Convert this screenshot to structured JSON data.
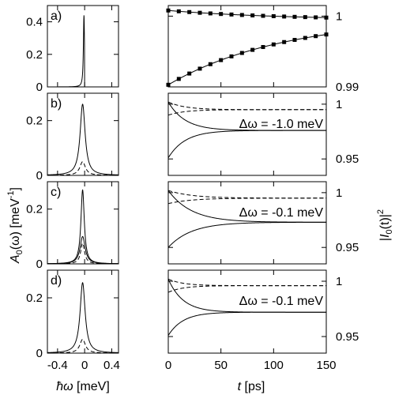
{
  "chart_data": {
    "type": "line",
    "rows": [
      {
        "label": "a)",
        "left": {
          "ylim": [
            0,
            0.5
          ],
          "yticks": [
            {
              "v": 0,
              "t": "0"
            },
            {
              "v": 0.2,
              "t": "0.2"
            },
            {
              "v": 0.4,
              "t": "0.4"
            }
          ],
          "series": [
            {
              "style": "solid",
              "kind": "peak",
              "center": -0.01,
              "peak": 0.44,
              "width": 0.01,
              "cutoff": true
            }
          ]
        },
        "right": {
          "ylim": [
            0.99,
            1.0015
          ],
          "yticks": [
            {
              "v": 0.99,
              "t": "0.99"
            },
            {
              "v": 1.0,
              "t": "1"
            }
          ],
          "annotation": "",
          "series": [
            {
              "style": "solid",
              "markers": true,
              "start": 1.0008,
              "end": 0.99945,
              "tau": 110
            },
            {
              "style": "solid",
              "markers": true,
              "start": 0.9903,
              "end": 0.99985,
              "tau": 110
            }
          ]
        }
      },
      {
        "label": "b)",
        "left": {
          "ylim": [
            0,
            0.3
          ],
          "yticks": [
            {
              "v": 0,
              "t": "0"
            },
            {
              "v": 0.2,
              "t": "0.2"
            }
          ],
          "series": [
            {
              "style": "solid",
              "kind": "peak",
              "center": -0.03,
              "peak": 0.26,
              "width": 0.045
            },
            {
              "style": "dashed",
              "kind": "peak",
              "center": -0.03,
              "peak": 0.05,
              "width": 0.05
            }
          ]
        },
        "right": {
          "ylim": [
            0.935,
            1.01
          ],
          "yticks": [
            {
              "v": 0.95,
              "t": "0.95"
            },
            {
              "v": 1.0,
              "t": "1"
            }
          ],
          "annotation": "Δω = -1.0 meV",
          "series": [
            {
              "style": "solid",
              "start": 1.002,
              "end": 0.976,
              "tau": 16
            },
            {
              "style": "solid",
              "start": 0.951,
              "end": 0.976,
              "tau": 16
            },
            {
              "style": "dashed",
              "start": 1.002,
              "end": 0.995,
              "tau": 16
            },
            {
              "style": "dashed",
              "start": 0.99,
              "end": 0.995,
              "tau": 16
            }
          ]
        }
      },
      {
        "label": "c)",
        "left": {
          "ylim": [
            0,
            0.3
          ],
          "yticks": [
            {
              "v": 0,
              "t": "0"
            },
            {
              "v": 0.2,
              "t": "0.2"
            }
          ],
          "series": [
            {
              "style": "solid",
              "kind": "peak",
              "center": -0.03,
              "peak": 0.27,
              "width": 0.03
            },
            {
              "style": "solid",
              "kind": "peak",
              "center": -0.03,
              "peak": 0.1,
              "width": 0.045
            },
            {
              "style": "dashed",
              "kind": "peak",
              "center": -0.03,
              "peak": 0.075,
              "width": 0.035
            }
          ]
        },
        "right": {
          "ylim": [
            0.935,
            1.01
          ],
          "yticks": [
            {
              "v": 0.95,
              "t": "0.95"
            },
            {
              "v": 1.0,
              "t": "1"
            }
          ],
          "annotation": "Δω = -0.1 meV",
          "series": [
            {
              "style": "solid",
              "start": 1.002,
              "end": 0.973,
              "tau": 22
            },
            {
              "style": "solid",
              "start": 0.95,
              "end": 0.973,
              "tau": 22
            },
            {
              "style": "dashed",
              "start": 1.002,
              "end": 0.995,
              "tau": 22
            },
            {
              "style": "dashed",
              "start": 0.99,
              "end": 0.995,
              "tau": 22
            }
          ]
        }
      },
      {
        "label": "d)",
        "left": {
          "ylim": [
            0,
            0.3
          ],
          "yticks": [
            {
              "v": 0,
              "t": "0"
            },
            {
              "v": 0.2,
              "t": "0.2"
            }
          ],
          "series": [
            {
              "style": "solid",
              "kind": "peak",
              "center": -0.03,
              "peak": 0.255,
              "width": 0.045
            },
            {
              "style": "dashed",
              "kind": "peak",
              "center": -0.03,
              "peak": 0.05,
              "width": 0.05
            }
          ]
        },
        "right": {
          "ylim": [
            0.935,
            1.01
          ],
          "yticks": [
            {
              "v": 0.95,
              "t": "0.95"
            },
            {
              "v": 1.0,
              "t": "1"
            }
          ],
          "annotation": "Δω = -0.1 meV",
          "series": [
            {
              "style": "solid",
              "start": 1.002,
              "end": 0.972,
              "tau": 14
            },
            {
              "style": "solid",
              "start": 0.951,
              "end": 0.972,
              "tau": 14
            },
            {
              "style": "dashed",
              "start": 1.002,
              "end": 0.996,
              "tau": 14
            },
            {
              "style": "dashed",
              "start": 0.99,
              "end": 0.996,
              "tau": 14
            }
          ]
        }
      }
    ],
    "left_x": {
      "xlim": [
        -0.55,
        0.5
      ],
      "xticks": [
        {
          "v": -0.4,
          "t": "-0.4"
        },
        {
          "v": 0,
          "t": "0"
        },
        {
          "v": 0.4,
          "t": "0.4"
        }
      ],
      "xlabel_sym": "ħω",
      "xlabel_unit": " [meV]"
    },
    "right_x": {
      "xlim": [
        0,
        150
      ],
      "xticks": [
        {
          "v": 0,
          "t": "0"
        },
        {
          "v": 50,
          "t": "50"
        },
        {
          "v": 100,
          "t": "100"
        },
        {
          "v": 150,
          "t": "150"
        }
      ],
      "xlabel_sym": "t",
      "xlabel_unit": " [ps]"
    },
    "left_ylabel": {
      "main": "A",
      "sub": "0",
      "arg": "(ω) [meV",
      "sup": "-1",
      "close": "]"
    },
    "right_ylabel": {
      "bar": "|",
      "main": "I",
      "sub": "0",
      "arg": "(t)|",
      "sup": "2"
    }
  }
}
